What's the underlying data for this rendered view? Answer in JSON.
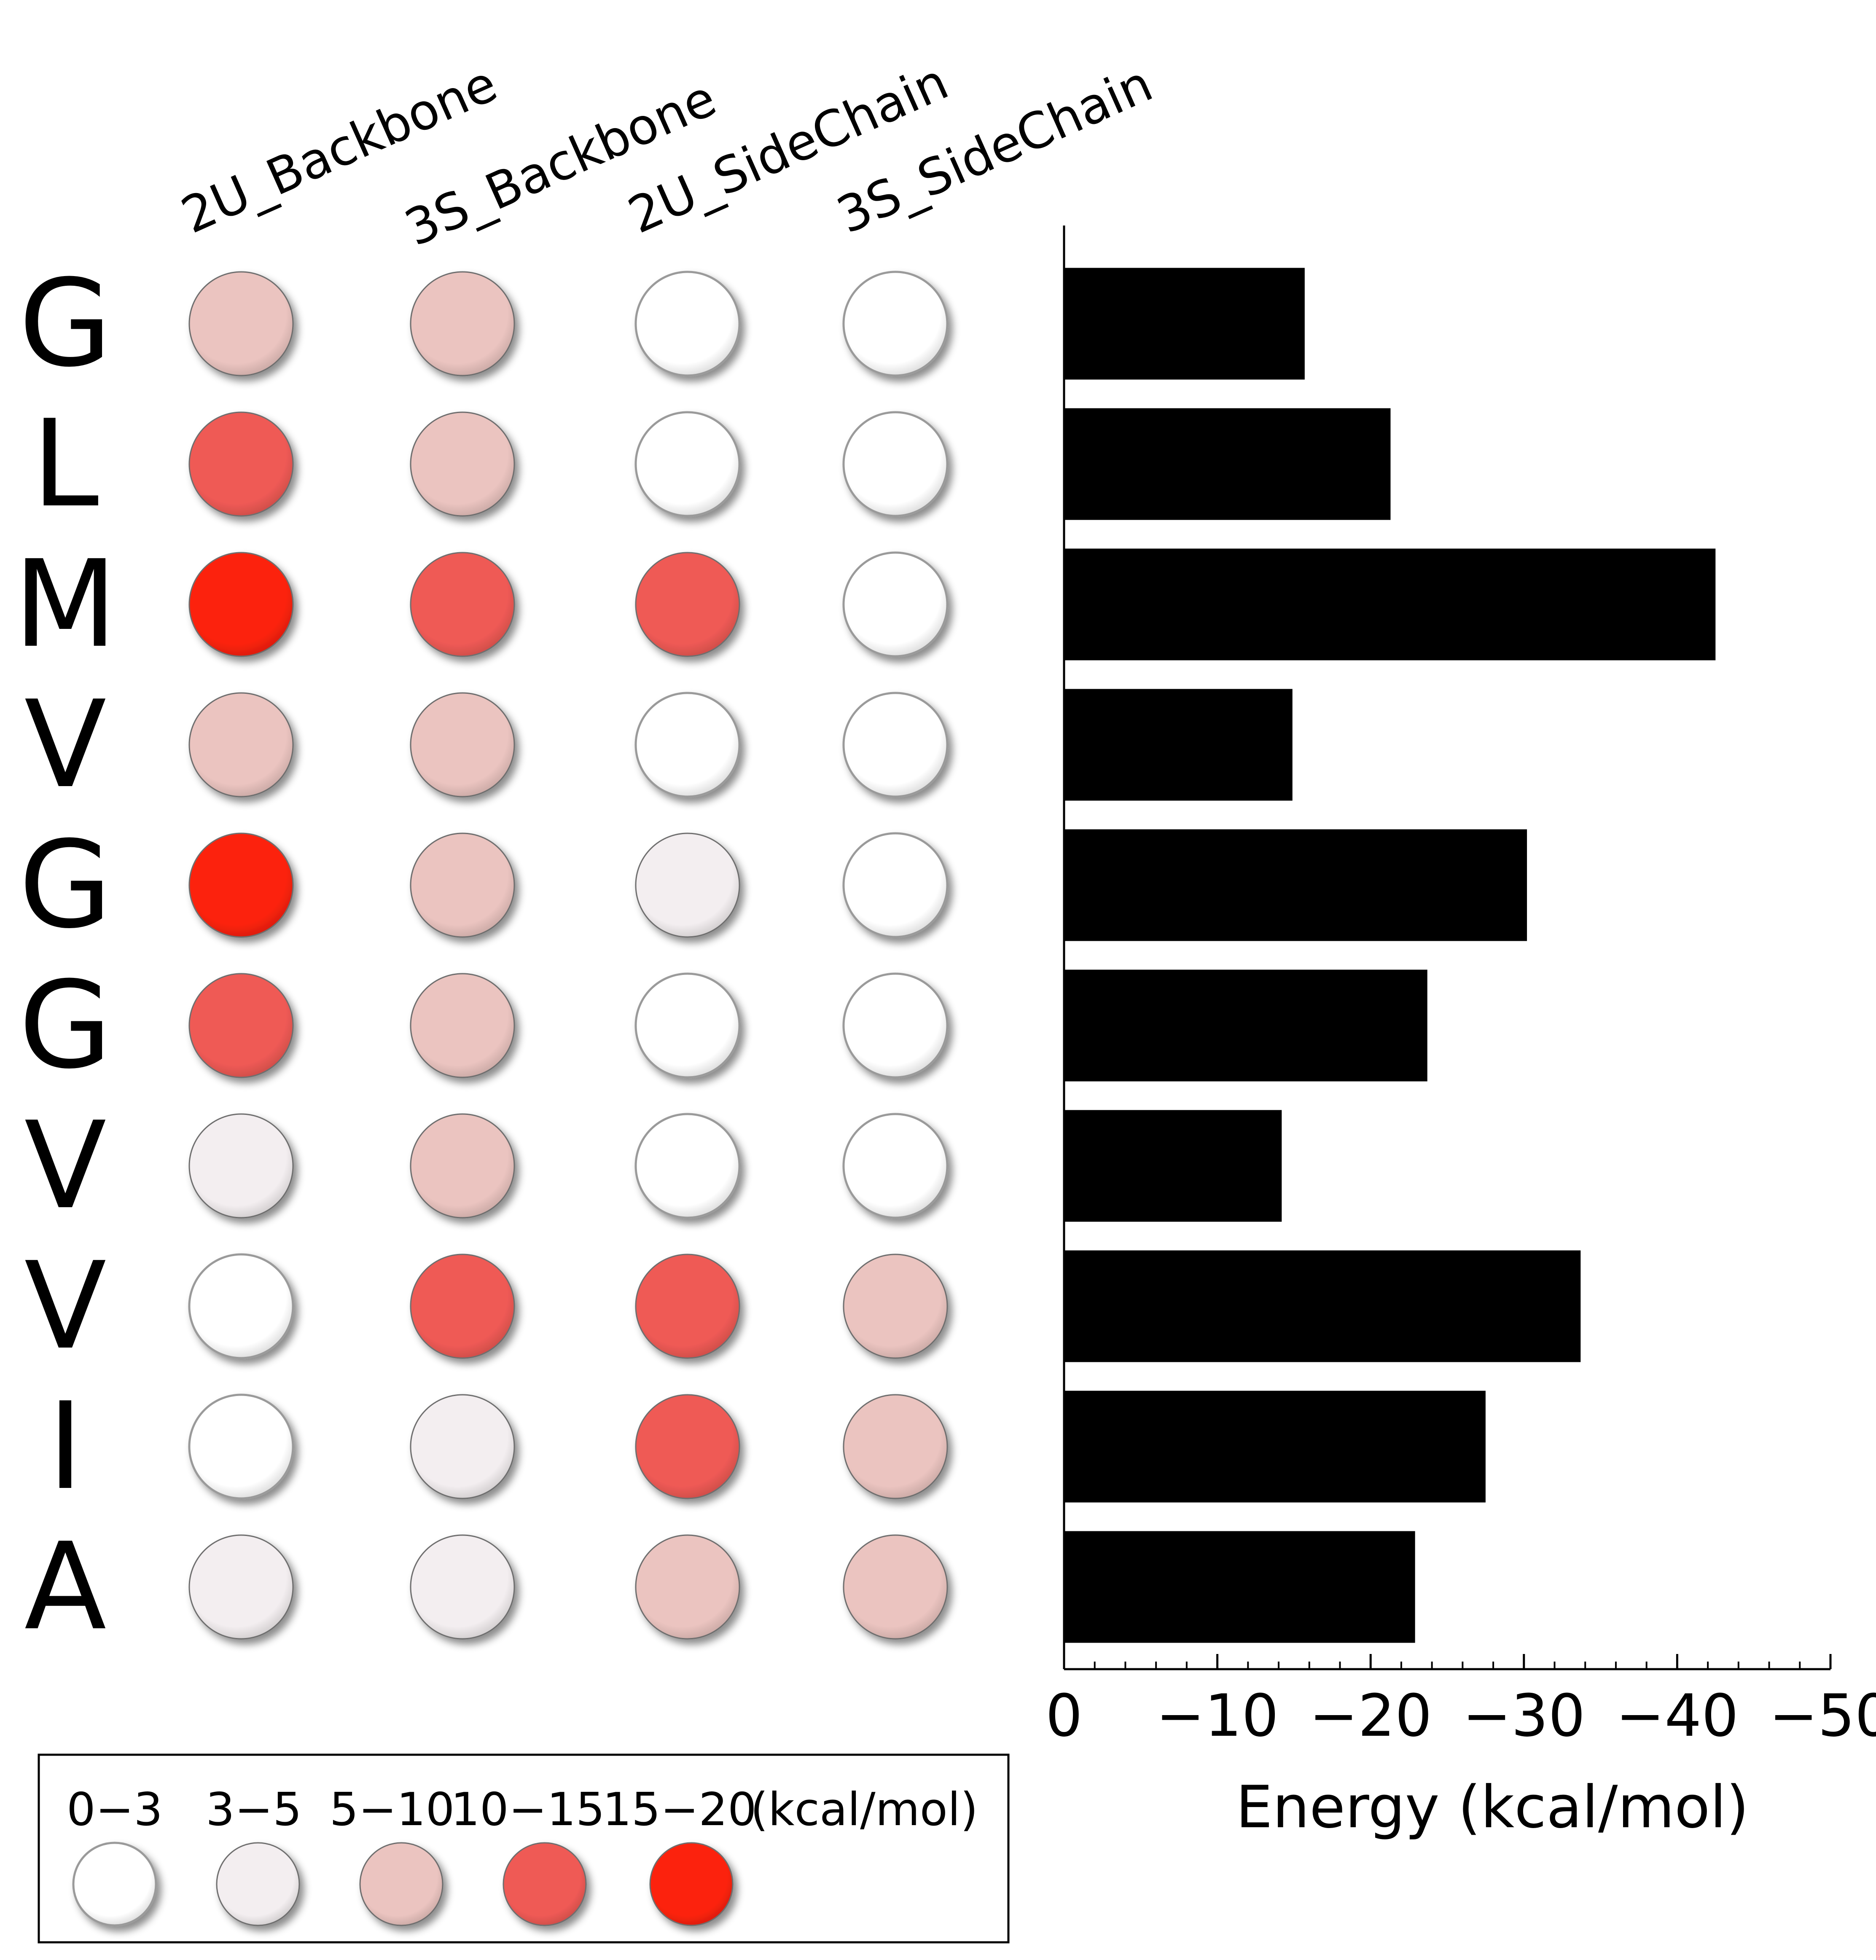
{
  "chart_data": {
    "type": "heatmap",
    "columns": [
      "2U_Backbone",
      "3S_Backbone",
      "2U_SideChain",
      "3S_SideChain"
    ],
    "residues": [
      "G",
      "L",
      "M",
      "V",
      "G",
      "G",
      "V",
      "V",
      "I",
      "A"
    ],
    "categories": [
      "0−3",
      "3−5",
      "5−10",
      "10−15",
      "15−20"
    ],
    "category_colors": [
      "#ffffff",
      "#f3eef0",
      "#ebc4c0",
      "#ef5a55",
      "#fc2208"
    ],
    "category_index_matrix": [
      [
        2,
        2,
        0,
        0
      ],
      [
        3,
        2,
        0,
        0
      ],
      [
        4,
        3,
        3,
        0
      ],
      [
        2,
        2,
        0,
        0
      ],
      [
        4,
        2,
        1,
        0
      ],
      [
        3,
        2,
        0,
        0
      ],
      [
        1,
        2,
        0,
        0
      ],
      [
        0,
        3,
        3,
        2
      ],
      [
        0,
        1,
        3,
        2
      ],
      [
        1,
        1,
        2,
        2
      ]
    ],
    "legend_unit": "(kcal/mol)",
    "bar_chart": {
      "type": "bar",
      "orientation": "horizontal",
      "values": [
        -15.7,
        -21.3,
        -42.5,
        -14.9,
        -30.2,
        -23.7,
        -14.2,
        -33.7,
        -27.5,
        -22.9
      ],
      "xlabel": "Energy (kcal/mol)",
      "xlim": [
        0,
        -50
      ],
      "xticks": [
        0,
        -10,
        -20,
        -30,
        -40,
        -50
      ],
      "xtick_labels": [
        "0",
        "−10",
        "−20",
        "−30",
        "−40",
        "−50"
      ],
      "bar_color": "#000000"
    }
  }
}
